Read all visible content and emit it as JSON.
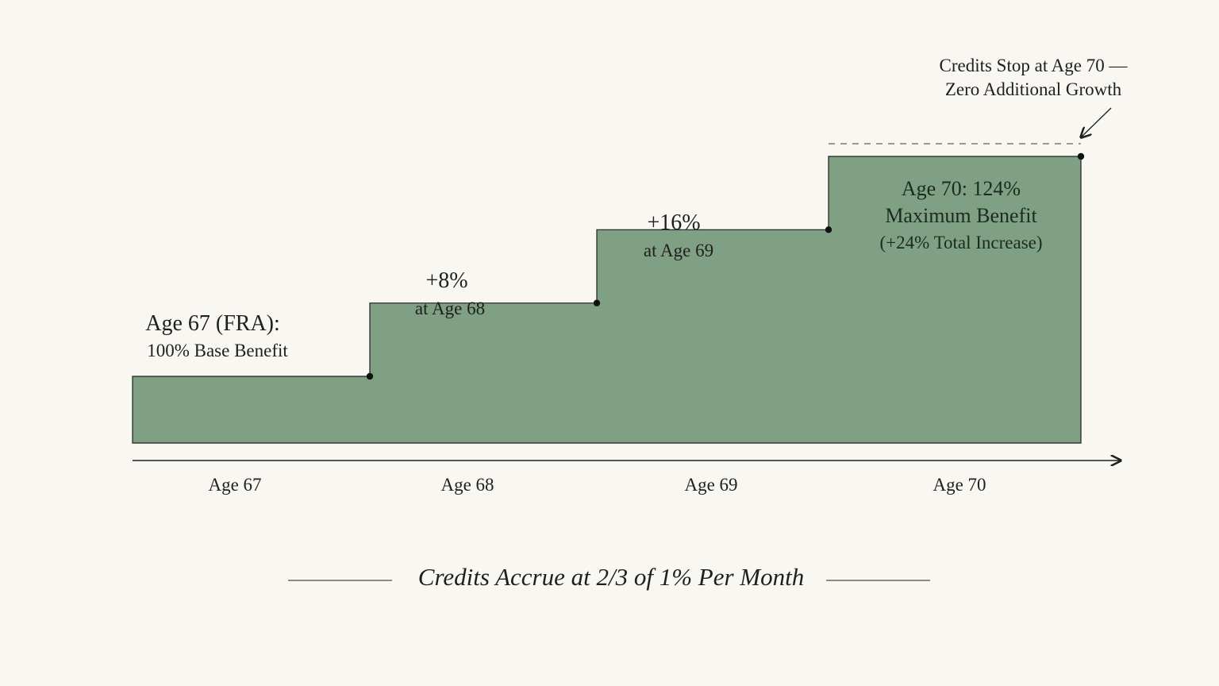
{
  "colors": {
    "background": "#f9f7f2",
    "fill": "#7fa083",
    "stroke": "#1f1f1f",
    "dashed_line": "#7a7a7a"
  },
  "chart_data": {
    "type": "area",
    "step": true,
    "categories": [
      "Age 67",
      "Age 68",
      "Age 69",
      "Age 70"
    ],
    "values": [
      100,
      108,
      116,
      124
    ],
    "ylim": [
      88,
      128
    ],
    "annotations": [
      {
        "main": "Age 67 (FRA):",
        "sub": "100% Base Benefit"
      },
      {
        "main": "+8%",
        "sub": "at Age 68"
      },
      {
        "main": "+16%",
        "sub": "at Age 69"
      },
      {
        "main": "Age 70: 124%",
        "main2": "Maximum Benefit",
        "sub": "(+24% Total Increase)"
      }
    ],
    "cap_note": [
      "Credits Stop at Age 70 —",
      "Zero Additional Growth"
    ],
    "footer": "Credits Accrue at 2/3 of 1% Per Month"
  }
}
